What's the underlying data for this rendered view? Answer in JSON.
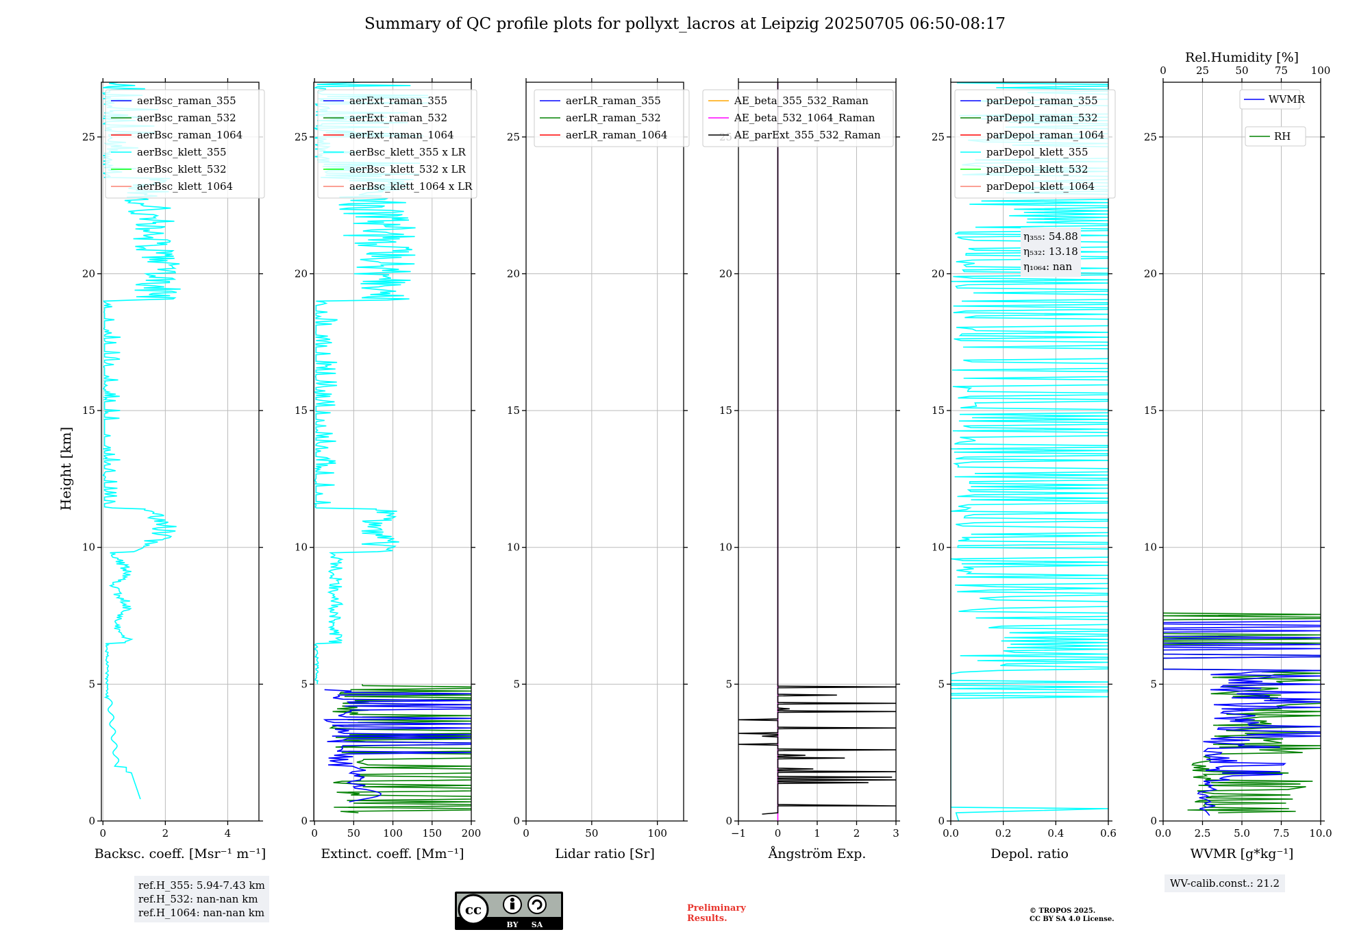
{
  "title": "Summary of QC profile plots for pollyxt_lacros at Leipzig 20250705 06:50-08:17",
  "y_label": "Height [km]",
  "ref_heights": [
    "ref.H_355: 5.94-7.43 km",
    "ref.H_532: nan-nan km",
    "ref.H_1064: nan-nan km"
  ],
  "wv_calib": "WV-calib.const.: 21.2",
  "prelim": [
    "Preliminary",
    "Results."
  ],
  "copyright": [
    "© TROPOS 2025.",
    "CC BY SA 4.0 License."
  ],
  "cc_badge": {
    "cc": "cc",
    "by": "BY",
    "sa": "SA"
  },
  "colors": {
    "blue": "#0000ff",
    "green": "#008000",
    "red": "#ff0000",
    "cyan": "#00ffff",
    "lime": "#00ff00",
    "salmon": "#fa8072",
    "orange": "#ffa500",
    "magenta": "#ff00ff",
    "black": "#000000"
  },
  "chart_data": [
    {
      "type": "line",
      "id": "bsc",
      "xlabel": "Backsc. coeff. [Msr⁻¹ m⁻¹]",
      "xlim": [
        -0.05,
        5
      ],
      "ylim": [
        0,
        27
      ],
      "xticks": [
        0,
        2,
        4
      ],
      "yticks": [
        0,
        5,
        10,
        15,
        20,
        25
      ],
      "legend": [
        {
          "name": "aerBsc_raman_355",
          "color": "#0000ff"
        },
        {
          "name": "aerBsc_raman_532",
          "color": "#008000"
        },
        {
          "name": "aerBsc_raman_1064",
          "color": "#ff0000"
        },
        {
          "name": "aerBsc_klett_355",
          "color": "#00ffff"
        },
        {
          "name": "aerBsc_klett_532",
          "color": "#00ff00"
        },
        {
          "name": "aerBsc_klett_1064",
          "color": "#fa8072"
        }
      ],
      "series": [
        {
          "name": "aerBsc_klett_355",
          "color": "#00ffff",
          "profile": "bsc355"
        }
      ]
    },
    {
      "type": "line",
      "id": "ext",
      "xlabel": "Extinct. coeff. [Mm⁻¹]",
      "xlim": [
        -1,
        200
      ],
      "ylim": [
        0,
        27
      ],
      "xticks": [
        0,
        50,
        100,
        150,
        200
      ],
      "yticks": [
        0,
        5,
        10,
        15,
        20,
        25
      ],
      "legend": [
        {
          "name": "aerExt_raman_355",
          "color": "#0000ff"
        },
        {
          "name": "aerExt_raman_532",
          "color": "#008000"
        },
        {
          "name": "aerExt_raman_1064",
          "color": "#ff0000"
        },
        {
          "name": "aerBsc_klett_355 x LR",
          "color": "#00ffff"
        },
        {
          "name": "aerBsc_klett_532 x LR",
          "color": "#00ff00"
        },
        {
          "name": "aerBsc_klett_1064 x LR",
          "color": "#fa8072"
        }
      ],
      "series": [
        {
          "name": "aerBsc_klett_355 x LR",
          "color": "#00ffff",
          "profile": "ext355"
        },
        {
          "name": "aerExt_raman_532",
          "color": "#008000",
          "profile": "ext532"
        },
        {
          "name": "aerExt_raman_355",
          "color": "#0000ff",
          "profile": "extraman355"
        }
      ]
    },
    {
      "type": "line",
      "id": "lr",
      "xlabel": "Lidar ratio [Sr]",
      "xlim": [
        0,
        120
      ],
      "ylim": [
        0,
        27
      ],
      "xticks": [
        0,
        50,
        100
      ],
      "yticks": [
        0,
        5,
        10,
        15,
        20,
        25
      ],
      "legend": [
        {
          "name": "aerLR_raman_355",
          "color": "#0000ff"
        },
        {
          "name": "aerLR_raman_532",
          "color": "#008000"
        },
        {
          "name": "aerLR_raman_1064",
          "color": "#ff0000"
        }
      ],
      "series": []
    },
    {
      "type": "line",
      "id": "ae",
      "xlabel": "Ångström Exp.",
      "xlim": [
        -1,
        3
      ],
      "ylim": [
        0,
        27
      ],
      "xticks": [
        -1,
        0,
        1,
        2,
        3
      ],
      "yticks": [
        0,
        5,
        10,
        15,
        20,
        25
      ],
      "legend": [
        {
          "name": "AE_beta_355_532_Raman",
          "color": "#ffa500"
        },
        {
          "name": "AE_beta_532_1064_Raman",
          "color": "#ff00ff"
        },
        {
          "name": "AE_parExt_355_532_Raman",
          "color": "#000000"
        }
      ],
      "series": [
        {
          "name": "AE_beta_532_1064_Raman",
          "color": "#ff00ff",
          "profile": "aemag"
        },
        {
          "name": "AE_parExt_355_532_Raman",
          "color": "#000000",
          "profile": "aeblack"
        }
      ]
    },
    {
      "type": "line",
      "id": "depol",
      "xlabel": "Depol. ratio",
      "xlim": [
        0,
        0.6
      ],
      "ylim": [
        0,
        27
      ],
      "xticks": [
        0.0,
        0.2,
        0.4,
        0.6
      ],
      "yticks": [
        0,
        5,
        10,
        15,
        20,
        25
      ],
      "legend": [
        {
          "name": "parDepol_raman_355",
          "color": "#0000ff"
        },
        {
          "name": "parDepol_raman_532",
          "color": "#008000"
        },
        {
          "name": "parDepol_raman_1064",
          "color": "#ff0000"
        },
        {
          "name": "parDepol_klett_355",
          "color": "#00ffff"
        },
        {
          "name": "parDepol_klett_532",
          "color": "#00ff00"
        },
        {
          "name": "parDepol_klett_1064",
          "color": "#fa8072"
        }
      ],
      "annotations": [
        "η₃₅₅: 54.88",
        "η₅₃₂: 13.18",
        "η₁₀₆₄: nan"
      ],
      "series": [
        {
          "name": "parDepol_klett_355",
          "color": "#00ffff",
          "profile": "depol355"
        }
      ]
    },
    {
      "type": "line",
      "id": "wv",
      "xlabel": "WVMR [g*kg⁻¹]",
      "xlim": [
        0,
        10
      ],
      "ylim": [
        0,
        27
      ],
      "xticks": [
        0.0,
        2.5,
        5.0,
        7.5,
        10.0
      ],
      "yticks": [
        0,
        5,
        10,
        15,
        20,
        25
      ],
      "top_axis": {
        "label": "Rel.Humidity [%]",
        "lim": [
          0,
          100
        ],
        "ticks": [
          0,
          25,
          50,
          75,
          100
        ]
      },
      "legend": [
        {
          "name": "WVMR",
          "color": "#0000ff"
        },
        {
          "name": "RH",
          "color": "#008000"
        }
      ],
      "series": [
        {
          "name": "RH",
          "color": "#008000",
          "profile": "rh"
        },
        {
          "name": "WVMR",
          "color": "#0000ff",
          "profile": "wvmr"
        }
      ]
    }
  ]
}
